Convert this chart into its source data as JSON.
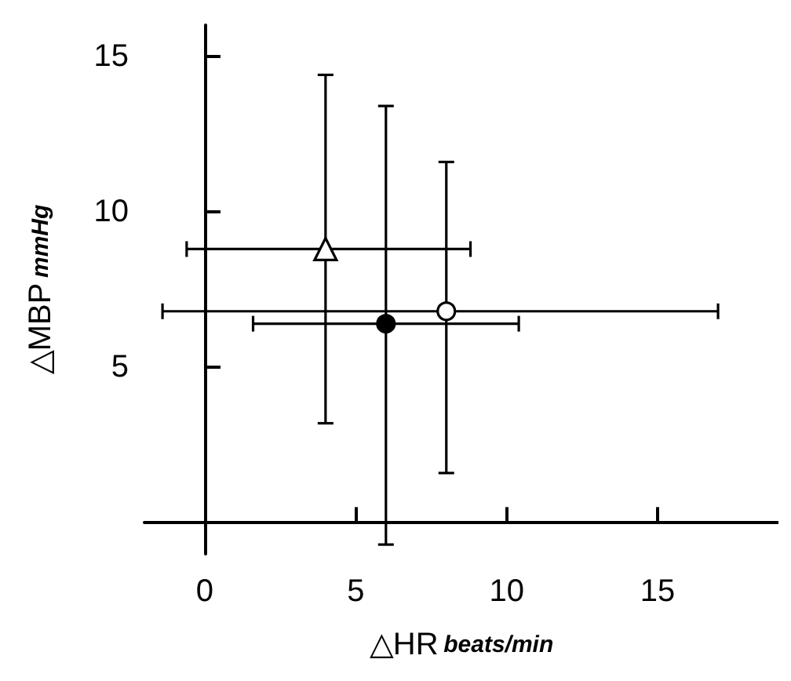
{
  "chart_data": {
    "type": "scatter",
    "xlabel": "△HR beats/min",
    "ylabel": "△MBP mmHg",
    "xlim": [
      -2,
      19
    ],
    "ylim": [
      -1,
      16
    ],
    "xticks": [
      0,
      5,
      10,
      15
    ],
    "yticks": [
      5,
      10,
      15
    ],
    "series": [
      {
        "marker": "triangle",
        "color": "#ffffff",
        "x": [
          4
        ],
        "values": [
          8.8
        ],
        "errors": [
          [
            3.2,
            14.4
          ]
        ],
        "xerrors": [
          [
            -0.6,
            8.8
          ]
        ]
      },
      {
        "marker": "circle",
        "color": "#000000",
        "x": [
          6
        ],
        "values": [
          6.4
        ],
        "errors": [
          [
            -0.7,
            13.4
          ]
        ],
        "xerrors": [
          [
            1.6,
            10.4
          ]
        ]
      },
      {
        "marker": "circle",
        "color": "#ffffff",
        "x": [
          8
        ],
        "values": [
          6.8
        ],
        "errors": [
          [
            1.6,
            11.6
          ]
        ],
        "xerrors": [
          [
            -1.4,
            17
          ]
        ]
      }
    ]
  }
}
